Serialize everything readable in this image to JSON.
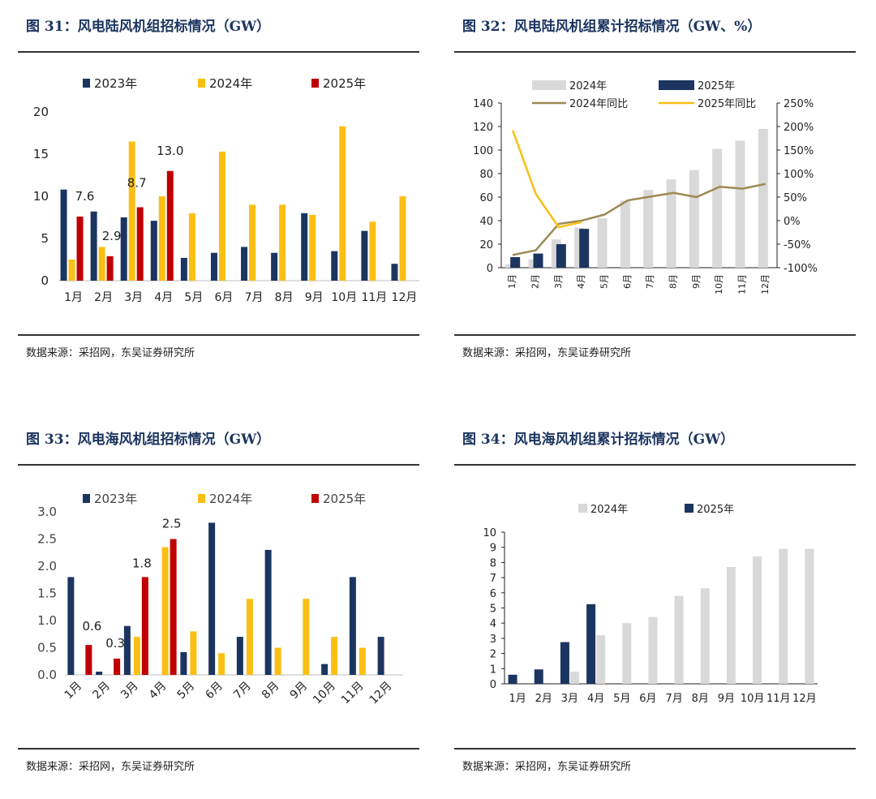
{
  "chart_data": [
    {
      "type": "bar",
      "title": "图 31：风电陆风机组招标情况（GW）",
      "source": "数据来源：采招网，东吴证券研究所",
      "categories": [
        "1月",
        "2月",
        "3月",
        "4月",
        "5月",
        "6月",
        "7月",
        "8月",
        "9月",
        "10月",
        "11月",
        "12月"
      ],
      "series": [
        {
          "name": "2023年",
          "color": "#1c3560",
          "values": [
            10.8,
            8.2,
            7.5,
            7.1,
            2.7,
            3.3,
            4.0,
            3.3,
            8.0,
            3.5,
            5.9,
            2.0
          ]
        },
        {
          "name": "2024年",
          "color": "#fbbf14",
          "values": [
            2.5,
            4.0,
            16.5,
            10.0,
            8.0,
            15.3,
            9.0,
            9.0,
            7.8,
            18.3,
            7.0,
            10.0
          ]
        },
        {
          "name": "2025年",
          "color": "#c00000",
          "values": [
            7.6,
            2.9,
            8.7,
            13.0,
            null,
            null,
            null,
            null,
            null,
            null,
            null,
            null
          ]
        }
      ],
      "data_labels": [
        "7.6",
        "2.9",
        "8.7",
        "13.0"
      ],
      "y_ticks": [
        "0",
        "5",
        "10",
        "15",
        "20"
      ],
      "ylim": [
        0,
        20
      ],
      "legend": "top"
    },
    {
      "type": "bar",
      "title": "图 32：风电陆风机组累计招标情况（GW、%）",
      "source": "数据来源：采招网，东吴证券研究所",
      "categories": [
        "1月",
        "2月",
        "3月",
        "4月",
        "5月",
        "6月",
        "7月",
        "8月",
        "9月",
        "10月",
        "11月",
        "12月"
      ],
      "bar_series": [
        {
          "name": "2024年",
          "color": "#d9d9d9",
          "values": [
            3,
            7,
            24,
            34,
            42,
            57,
            66,
            75,
            83,
            101,
            108,
            118
          ]
        },
        {
          "name": "2025年",
          "color": "#1c3560",
          "values": [
            9,
            12,
            20,
            33,
            null,
            null,
            null,
            null,
            null,
            null,
            null,
            null
          ]
        }
      ],
      "line_series": [
        {
          "name": "2024年同比",
          "color": "#9c8a52",
          "values": [
            -73,
            -63,
            -7,
            0,
            13,
            43,
            51,
            59,
            50,
            72,
            68,
            78
          ]
        },
        {
          "name": "2025年同比",
          "color": "#fbbf14",
          "values": [
            192,
            57,
            -14,
            -3,
            null,
            null,
            null,
            null,
            null,
            null,
            null,
            null
          ]
        }
      ],
      "y_ticks": [
        "0",
        "20",
        "40",
        "60",
        "80",
        "100",
        "120",
        "140"
      ],
      "y2_ticks": [
        "-100%",
        "-50%",
        "0%",
        "50%",
        "100%",
        "150%",
        "200%",
        "250%"
      ],
      "ylim": [
        0,
        140
      ],
      "y2lim": [
        -100,
        250
      ],
      "legend": "top"
    },
    {
      "type": "bar",
      "title": "图 33：风电海风机组招标情况（GW）",
      "source": "数据来源：采招网，东吴证券研究所",
      "categories": [
        "1月",
        "2月",
        "3月",
        "4月",
        "5月",
        "6月",
        "7月",
        "8月",
        "9月",
        "10月",
        "11月",
        "12月"
      ],
      "series": [
        {
          "name": "2023年",
          "color": "#1c3560",
          "values": [
            1.8,
            0.06,
            0.9,
            null,
            0.42,
            2.8,
            0.7,
            2.3,
            null,
            0.2,
            1.8,
            0.7
          ]
        },
        {
          "name": "2024年",
          "color": "#fbbf14",
          "values": [
            null,
            null,
            0.7,
            2.35,
            0.8,
            0.4,
            1.4,
            0.5,
            1.4,
            0.7,
            0.5,
            null
          ]
        },
        {
          "name": "2025年",
          "color": "#c00000",
          "values": [
            0.55,
            0.3,
            1.8,
            2.5,
            null,
            null,
            null,
            null,
            null,
            null,
            null,
            null
          ]
        }
      ],
      "data_labels": [
        "0.6",
        "0.3",
        "1.8",
        "2.5"
      ],
      "y_ticks": [
        "0.0",
        "0.5",
        "1.0",
        "1.5",
        "2.0",
        "2.5",
        "3.0"
      ],
      "ylim": [
        0,
        3
      ],
      "legend": "top"
    },
    {
      "type": "bar",
      "title": "图 34：风电海风机组累计招标情况（GW）",
      "source": "数据来源：采招网，东吴证券研究所",
      "categories": [
        "1月",
        "2月",
        "3月",
        "4月",
        "5月",
        "6月",
        "7月",
        "8月",
        "9月",
        "10月",
        "11月",
        "12月"
      ],
      "series": [
        {
          "name": "2024年",
          "color": "#d9d9d9",
          "values": [
            null,
            null,
            0.8,
            3.2,
            4.0,
            4.4,
            5.8,
            6.3,
            7.7,
            8.4,
            8.9,
            8.9
          ]
        },
        {
          "name": "2025年",
          "color": "#1c3560",
          "values": [
            0.6,
            0.95,
            2.75,
            5.25,
            null,
            null,
            null,
            null,
            null,
            null,
            null,
            null
          ]
        }
      ],
      "y_ticks": [
        "0",
        "1",
        "2",
        "3",
        "4",
        "5",
        "6",
        "7",
        "8",
        "9",
        "10"
      ],
      "ylim": [
        0,
        10
      ],
      "legend": "top"
    }
  ]
}
